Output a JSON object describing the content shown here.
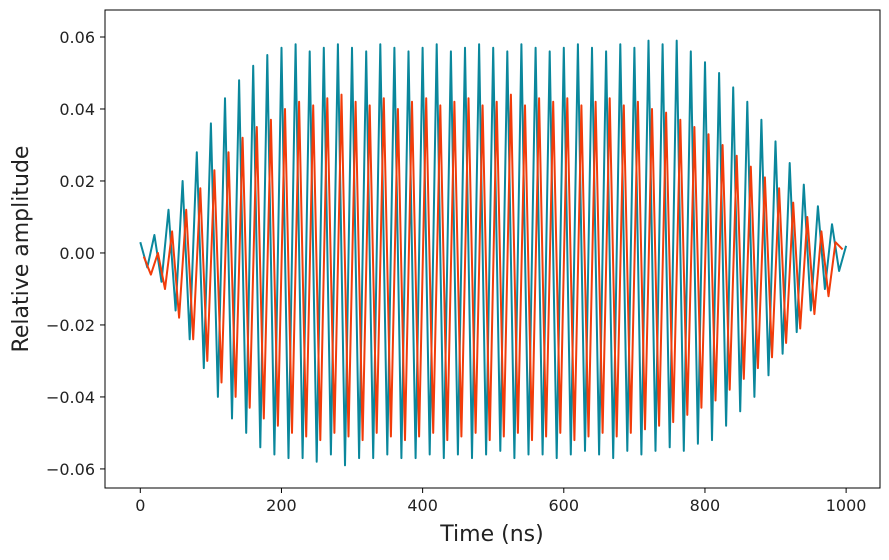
{
  "chart_data": {
    "type": "line",
    "title": "",
    "xlabel": "Time (ns)",
    "ylabel": "Relative amplitude",
    "xlim": [
      -50,
      1048
    ],
    "ylim": [
      -0.0653,
      0.0675
    ],
    "xticks": [
      0,
      200,
      400,
      600,
      800,
      1000
    ],
    "xtick_labels": [
      "0",
      "200",
      "400",
      "600",
      "800",
      "1000"
    ],
    "yticks": [
      0.06,
      0.04,
      0.02,
      0.0,
      -0.02,
      -0.04,
      -0.06
    ],
    "ytick_labels": [
      "0.06",
      "0.04",
      "0.02",
      "0.00",
      "−0.02",
      "−0.04",
      "−0.06"
    ],
    "grid": false,
    "legend": "none",
    "series": [
      {
        "color": "#0a879c",
        "x": [
          0,
          10,
          20,
          30,
          40,
          50,
          60,
          70,
          80,
          90,
          100,
          110,
          120,
          130,
          140,
          150,
          160,
          170,
          180,
          190,
          200,
          210,
          220,
          230,
          240,
          250,
          260,
          270,
          280,
          290,
          300,
          310,
          320,
          330,
          340,
          350,
          360,
          370,
          380,
          390,
          400,
          410,
          420,
          430,
          440,
          450,
          460,
          470,
          480,
          490,
          500,
          510,
          520,
          530,
          540,
          550,
          560,
          570,
          580,
          590,
          600,
          610,
          620,
          630,
          640,
          650,
          660,
          670,
          680,
          690,
          700,
          710,
          720,
          730,
          740,
          750,
          760,
          770,
          780,
          790,
          800,
          810,
          820,
          830,
          840,
          850,
          860,
          870,
          880,
          890,
          900,
          910,
          920,
          930,
          940,
          950,
          960,
          970,
          980,
          990,
          1000
        ],
        "y": [
          0.003,
          -0.004,
          0.005,
          -0.008,
          0.012,
          -0.016,
          0.02,
          -0.024,
          0.028,
          -0.032,
          0.036,
          -0.04,
          0.043,
          -0.046,
          0.048,
          -0.05,
          0.052,
          -0.054,
          0.055,
          -0.056,
          0.057,
          -0.057,
          0.058,
          -0.057,
          0.056,
          -0.058,
          0.057,
          -0.056,
          0.058,
          -0.059,
          0.057,
          -0.057,
          0.056,
          -0.057,
          0.058,
          -0.056,
          0.057,
          -0.057,
          0.056,
          -0.057,
          0.057,
          -0.056,
          0.058,
          -0.057,
          0.056,
          -0.056,
          0.057,
          -0.057,
          0.058,
          -0.056,
          0.057,
          -0.055,
          0.056,
          -0.057,
          0.058,
          -0.056,
          0.057,
          -0.056,
          0.056,
          -0.057,
          0.057,
          -0.056,
          0.058,
          -0.055,
          0.057,
          -0.056,
          0.056,
          -0.057,
          0.058,
          -0.055,
          0.057,
          -0.056,
          0.059,
          -0.055,
          0.058,
          -0.054,
          0.059,
          -0.055,
          0.056,
          -0.053,
          0.053,
          -0.052,
          0.05,
          -0.048,
          0.046,
          -0.044,
          0.042,
          -0.04,
          0.037,
          -0.034,
          0.031,
          -0.028,
          0.025,
          -0.022,
          0.019,
          -0.016,
          0.013,
          -0.01,
          0.008,
          -0.005,
          0.002
        ]
      },
      {
        "color": "#f23c0a",
        "x": [
          5,
          15,
          25,
          35,
          45,
          55,
          65,
          75,
          85,
          95,
          105,
          115,
          125,
          135,
          145,
          155,
          165,
          175,
          185,
          195,
          205,
          215,
          225,
          235,
          245,
          255,
          265,
          275,
          285,
          295,
          305,
          315,
          325,
          335,
          345,
          355,
          365,
          375,
          385,
          395,
          405,
          415,
          425,
          435,
          445,
          455,
          465,
          475,
          485,
          495,
          505,
          515,
          525,
          535,
          545,
          555,
          565,
          575,
          585,
          595,
          605,
          615,
          625,
          635,
          645,
          655,
          665,
          675,
          685,
          695,
          705,
          715,
          725,
          735,
          745,
          755,
          765,
          775,
          785,
          795,
          805,
          815,
          825,
          835,
          845,
          855,
          865,
          875,
          885,
          895,
          905,
          915,
          925,
          935,
          945,
          955,
          965,
          975,
          985,
          995
        ],
        "y": [
          -0.001,
          -0.006,
          0.0,
          -0.01,
          0.006,
          -0.018,
          0.012,
          -0.024,
          0.018,
          -0.03,
          0.023,
          -0.036,
          0.028,
          -0.04,
          0.032,
          -0.043,
          0.035,
          -0.046,
          0.037,
          -0.048,
          0.04,
          -0.05,
          0.042,
          -0.051,
          0.041,
          -0.052,
          0.043,
          -0.05,
          0.044,
          -0.051,
          0.042,
          -0.052,
          0.041,
          -0.05,
          0.043,
          -0.051,
          0.04,
          -0.052,
          0.042,
          -0.051,
          0.043,
          -0.05,
          0.041,
          -0.052,
          0.042,
          -0.051,
          0.043,
          -0.05,
          0.041,
          -0.052,
          0.042,
          -0.051,
          0.044,
          -0.05,
          0.041,
          -0.052,
          0.043,
          -0.051,
          0.042,
          -0.05,
          0.043,
          -0.052,
          0.041,
          -0.051,
          0.042,
          -0.05,
          0.043,
          -0.051,
          0.041,
          -0.05,
          0.042,
          -0.049,
          0.04,
          -0.048,
          0.039,
          -0.047,
          0.037,
          -0.045,
          0.035,
          -0.043,
          0.033,
          -0.041,
          0.03,
          -0.038,
          0.027,
          -0.035,
          0.024,
          -0.032,
          0.021,
          -0.029,
          0.018,
          -0.025,
          0.014,
          -0.021,
          0.01,
          -0.017,
          0.006,
          -0.012,
          0.003,
          0.001
        ]
      }
    ]
  }
}
